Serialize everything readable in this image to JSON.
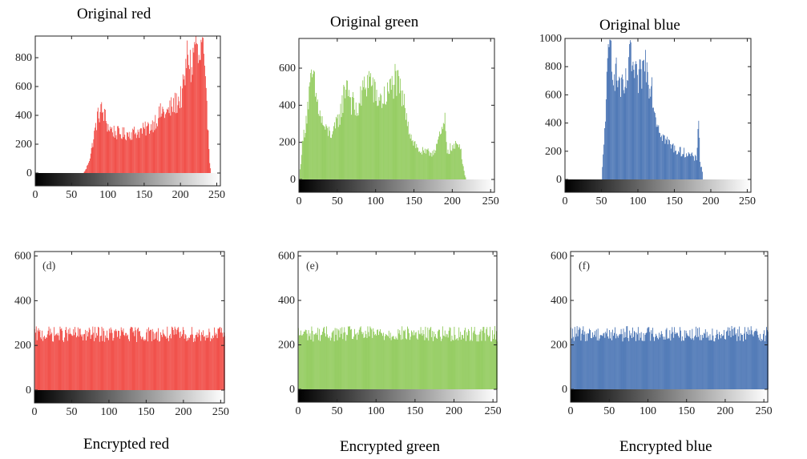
{
  "chart_data": [
    {
      "id": "a",
      "type": "bar",
      "title": "Original red",
      "panel_label": "",
      "color": "#ee2b24",
      "xlim": [
        0,
        255
      ],
      "ylim": [
        0,
        950
      ],
      "xticks": [
        0,
        50,
        100,
        150,
        200,
        250
      ],
      "yticks": [
        0,
        200,
        400,
        600,
        800
      ],
      "ytick_labels": [
        "0",
        "200",
        "400",
        "600",
        "800"
      ],
      "profile": [
        [
          66,
          0
        ],
        [
          70,
          30
        ],
        [
          75,
          110
        ],
        [
          80,
          240
        ],
        [
          85,
          380
        ],
        [
          90,
          440
        ],
        [
          95,
          400
        ],
        [
          100,
          320
        ],
        [
          110,
          280
        ],
        [
          120,
          270
        ],
        [
          130,
          275
        ],
        [
          140,
          285
        ],
        [
          150,
          300
        ],
        [
          160,
          330
        ],
        [
          170,
          400
        ],
        [
          175,
          430
        ],
        [
          180,
          410
        ],
        [
          190,
          470
        ],
        [
          200,
          520
        ],
        [
          205,
          620
        ],
        [
          210,
          850
        ],
        [
          215,
          700
        ],
        [
          220,
          930
        ],
        [
          225,
          750
        ],
        [
          230,
          900
        ],
        [
          235,
          500
        ],
        [
          238,
          300
        ],
        [
          240,
          80
        ],
        [
          242,
          0
        ]
      ]
    },
    {
      "id": "b",
      "type": "bar",
      "title": "Original green",
      "panel_label": "",
      "color": "#7fc241",
      "xlim": [
        0,
        255
      ],
      "ylim": [
        0,
        760
      ],
      "xticks": [
        0,
        50,
        100,
        150,
        200,
        250
      ],
      "yticks": [
        0,
        200,
        400,
        600
      ],
      "ytick_labels": [
        "0",
        "200",
        "400",
        "600"
      ],
      "profile": [
        [
          0,
          0
        ],
        [
          3,
          150
        ],
        [
          8,
          300
        ],
        [
          14,
          480
        ],
        [
          18,
          560
        ],
        [
          22,
          440
        ],
        [
          28,
          330
        ],
        [
          35,
          260
        ],
        [
          45,
          250
        ],
        [
          55,
          380
        ],
        [
          62,
          540
        ],
        [
          68,
          420
        ],
        [
          75,
          360
        ],
        [
          85,
          500
        ],
        [
          92,
          550
        ],
        [
          100,
          440
        ],
        [
          110,
          430
        ],
        [
          118,
          480
        ],
        [
          125,
          540
        ],
        [
          132,
          470
        ],
        [
          140,
          360
        ],
        [
          145,
          240
        ],
        [
          155,
          160
        ],
        [
          165,
          140
        ],
        [
          175,
          150
        ],
        [
          185,
          240
        ],
        [
          190,
          310
        ],
        [
          193,
          160
        ],
        [
          200,
          170
        ],
        [
          210,
          190
        ],
        [
          215,
          40
        ],
        [
          218,
          0
        ]
      ]
    },
    {
      "id": "c",
      "type": "bar",
      "title": "Original blue",
      "panel_label": "",
      "color": "#2c5ea8",
      "xlim": [
        0,
        255
      ],
      "ylim": [
        0,
        1000
      ],
      "xticks": [
        0,
        50,
        100,
        150,
        200,
        250
      ],
      "yticks": [
        0,
        200,
        400,
        600,
        800,
        1000
      ],
      "ytick_labels": [
        "0",
        "200",
        "400",
        "600",
        "800",
        "1000"
      ],
      "profile": [
        [
          50,
          0
        ],
        [
          53,
          240
        ],
        [
          56,
          600
        ],
        [
          60,
          900
        ],
        [
          63,
          960
        ],
        [
          66,
          780
        ],
        [
          70,
          740
        ],
        [
          75,
          680
        ],
        [
          80,
          600
        ],
        [
          85,
          720
        ],
        [
          90,
          880
        ],
        [
          95,
          720
        ],
        [
          100,
          700
        ],
        [
          105,
          760
        ],
        [
          110,
          840
        ],
        [
          115,
          700
        ],
        [
          118,
          720
        ],
        [
          122,
          500
        ],
        [
          128,
          380
        ],
        [
          135,
          300
        ],
        [
          145,
          240
        ],
        [
          155,
          200
        ],
        [
          165,
          190
        ],
        [
          175,
          160
        ],
        [
          180,
          140
        ],
        [
          183,
          480
        ],
        [
          185,
          120
        ],
        [
          188,
          60
        ],
        [
          189,
          0
        ]
      ]
    },
    {
      "id": "d",
      "type": "bar",
      "title": "Encrypted red",
      "panel_label": "(d)",
      "color": "#ee2b24",
      "xlim": [
        0,
        255
      ],
      "ylim": [
        0,
        620
      ],
      "xticks": [
        0,
        50,
        100,
        150,
        200,
        250
      ],
      "yticks": [
        0,
        200,
        400,
        600
      ],
      "ytick_labels": [
        "0",
        "200",
        "400",
        "600"
      ],
      "uniform_level": 250
    },
    {
      "id": "e",
      "type": "bar",
      "title": "Encrypted green",
      "panel_label": "(e)",
      "color": "#7fc241",
      "xlim": [
        0,
        255
      ],
      "ylim": [
        0,
        620
      ],
      "xticks": [
        0,
        50,
        100,
        150,
        200,
        250
      ],
      "yticks": [
        0,
        200,
        400,
        600
      ],
      "ytick_labels": [
        "0",
        "200",
        "400",
        "600"
      ],
      "uniform_level": 250
    },
    {
      "id": "f",
      "type": "bar",
      "title": "Encrypted blue",
      "panel_label": "(f)",
      "color": "#2c5ea8",
      "xlim": [
        0,
        255
      ],
      "ylim": [
        0,
        620
      ],
      "xticks": [
        0,
        50,
        100,
        150,
        200,
        250
      ],
      "yticks": [
        0,
        200,
        400,
        600
      ],
      "ytick_labels": [
        "0",
        "200",
        "400",
        "600"
      ],
      "uniform_level": 250
    }
  ]
}
